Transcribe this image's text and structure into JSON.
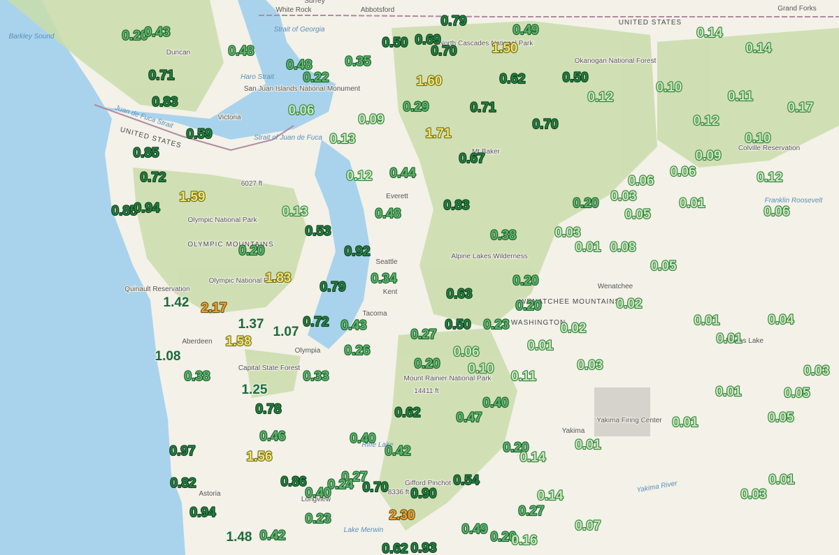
{
  "map": {
    "place_labels": [
      "Surrey",
      "White Rock",
      "Abbotsford",
      "Grand Forks",
      "Barkley Sound",
      "Duncan",
      "Victoria",
      "Strait of Georgia",
      "Haro Strait",
      "San Juan Islands National Monument",
      "Strait of Juan de Fuca",
      "Juan de Fuca Strait",
      "UNITED STATES",
      "UNITED STATES",
      "North Cascades National Park",
      "Okanogan National Forest",
      "Colville Reservation",
      "Franklin Roosevelt",
      "Everett",
      "Seattle",
      "Kent",
      "Tacoma",
      "Olympia",
      "Aberdeen",
      "Quinault Reservation",
      "Olympic National Park",
      "OLYMPIC MOUNTAINS",
      "Olympic National Forest",
      "Capital State Forest",
      "Mount Rainier National Park",
      "Alpine Lakes Wilderness",
      "Wenatchee",
      "WENATCHEE MOUNTAINS",
      "WASHINGTON",
      "Moses Lake",
      "Yakima",
      "Yakima Firing Center",
      "Yakima River",
      "Astoria",
      "Longview",
      "Lake Merwin",
      "Riffe Lake",
      "Gifford Pinchot",
      "Mt Baker",
      "14411 ft",
      "6027 ft",
      "8336 ft"
    ],
    "precipitation_labels": [
      "0.20",
      "0.43",
      "0.48",
      "0.71",
      "0.83",
      "0.59",
      "0.85",
      "0.72",
      "1.59",
      "0.85",
      "0.94",
      "0.48",
      "0.22",
      "0.06",
      "0.35",
      "0.50",
      "0.69",
      "0.79",
      "0.70",
      "1.50",
      "0.49",
      "1.60",
      "0.62",
      "0.50",
      "0.14",
      "0.14",
      "0.12",
      "0.10",
      "0.11",
      "0.17",
      "0.29",
      "0.71",
      "0.09",
      "0.70",
      "1.71",
      "0.12",
      "0.10",
      "0.13",
      "0.09",
      "0.67",
      "0.12",
      "0.44",
      "0.06",
      "0.06",
      "0.12",
      "0.03",
      "0.20",
      "0.01",
      "0.05",
      "0.06",
      "0.13",
      "0.48",
      "0.83",
      "0.53",
      "0.38",
      "0.03",
      "0.01",
      "0.08",
      "0.20",
      "0.92",
      "0.05",
      "1.83",
      "0.79",
      "0.34",
      "0.20",
      "0.63",
      "1.42",
      "2.17",
      "0.20",
      "0.02",
      "1.37",
      "1.07",
      "0.72",
      "0.43",
      "0.50",
      "0.23",
      "0.02",
      "0.01",
      "0.04",
      "0.01",
      "1.58",
      "0.27",
      "0.26",
      "0.06",
      "0.01",
      "1.08",
      "0.38",
      "0.33",
      "0.20",
      "0.10",
      "0.11",
      "0.03",
      "0.03",
      "1.25",
      "0.01",
      "0.05",
      "0.78",
      "0.62",
      "0.40",
      "0.47",
      "0.05",
      "0.01",
      "0.46",
      "0.40",
      "0.42",
      "0.20",
      "0.14",
      "0.01",
      "0.97",
      "1.56",
      "0.82",
      "0.86",
      "0.27",
      "0.24",
      "0.70",
      "0.40",
      "0.90",
      "0.54",
      "0.01",
      "0.03",
      "0.14",
      "0.94",
      "0.23",
      "2.30",
      "0.27",
      "0.07",
      "0.49",
      "0.20",
      "0.16",
      "1.48",
      "0.42",
      "0.62",
      "0.93"
    ]
  }
}
